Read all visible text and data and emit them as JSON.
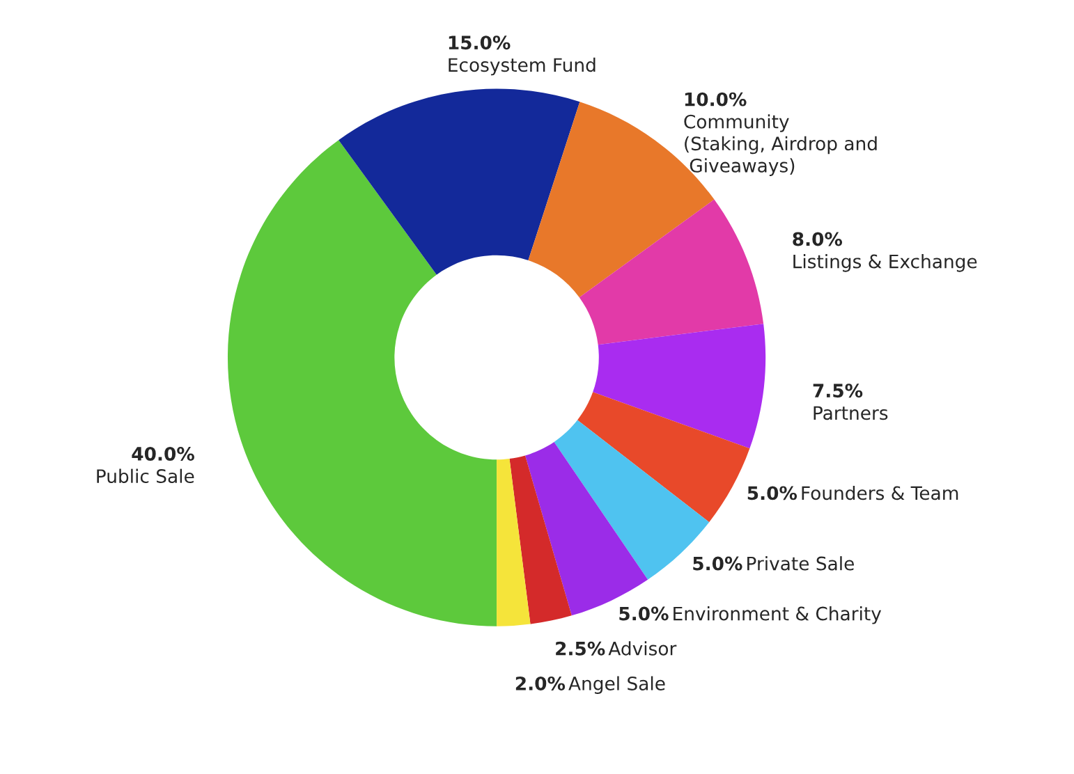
{
  "chart_data": {
    "type": "donut",
    "categories": [
      "Public Sale",
      "Ecosystem Fund",
      "Community\n(Staking, Airdrop and\n Giveaways)",
      "Listings & Exchange",
      "Partners",
      "Founders & Team",
      "Private Sale",
      "Environment & Charity",
      "Advisor",
      "Angel Sale"
    ],
    "values": [
      40,
      15,
      10,
      8,
      7.5,
      5,
      5,
      5,
      2.5,
      2
    ],
    "value_labels": [
      "40.0%",
      "15.0%",
      "10.0%",
      "8.0%",
      "7.5%",
      "5.0%",
      "5.0%",
      "5.0%",
      "2.5%",
      "2.0%"
    ],
    "colors": [
      "#5dc93c",
      "#13299a",
      "#e8782a",
      "#e23aa8",
      "#a92cf0",
      "#e8492a",
      "#4fc3f0",
      "#9b2ce8",
      "#d42a2a",
      "#f5e43a"
    ]
  }
}
